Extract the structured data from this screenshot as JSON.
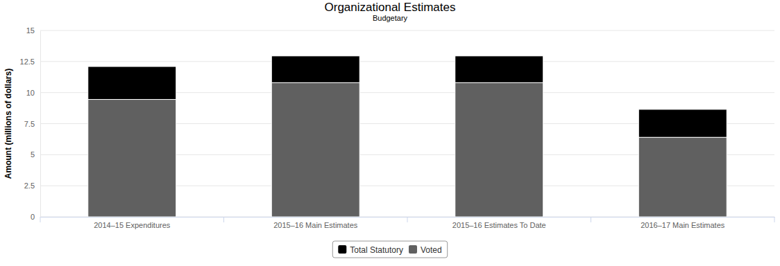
{
  "chart_data": {
    "type": "bar",
    "title": "Organizational Estimates",
    "subtitle": "Budgetary",
    "ylabel": "Amount (millions of dollars)",
    "categories": [
      "2014–15 Expenditures",
      "2015–16 Main Estimates",
      "2015–16 Estimates To Date",
      "2016–17 Main Estimates"
    ],
    "series": [
      {
        "name": "Voted",
        "color": "#606060",
        "values": [
          9.45,
          10.8,
          10.8,
          6.4
        ]
      },
      {
        "name": "Total Statutory",
        "color": "#000000",
        "values": [
          2.65,
          2.15,
          2.15,
          2.25
        ]
      }
    ],
    "stacked": true,
    "ylim": [
      0,
      15
    ],
    "yticks": [
      0,
      2.5,
      5,
      7.5,
      10,
      12.5,
      15
    ],
    "grid": true,
    "legend": "bottom"
  }
}
